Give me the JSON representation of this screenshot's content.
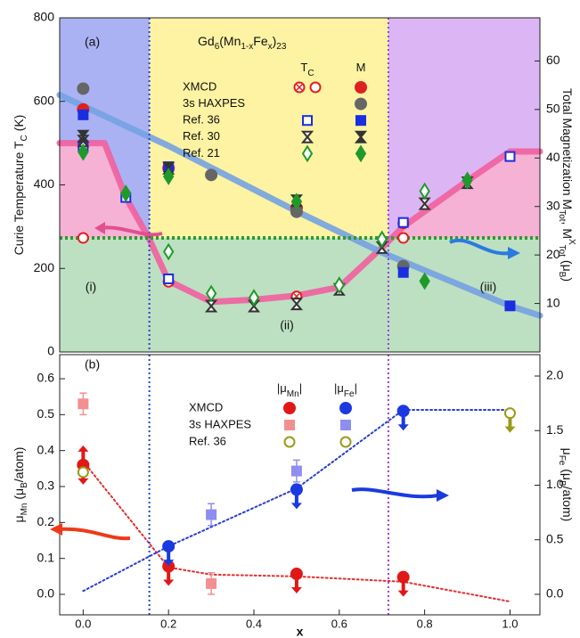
{
  "chart_data": [
    {
      "type": "scatter",
      "panel_label": "(a)",
      "title": [
        {
          "text": "Gd"
        },
        {
          "text": "6",
          "pos": "sub"
        },
        {
          "text": "(Mn"
        },
        {
          "text": "1-x",
          "pos": "sub"
        },
        {
          "text": "Fe"
        },
        {
          "text": "x",
          "pos": "sub"
        },
        {
          "text": ")"
        },
        {
          "text": "23",
          "pos": "sub"
        }
      ],
      "annotations": [
        "(i)",
        "(ii)",
        "(iii)"
      ],
      "y_label": [
        {
          "text": "Curie Temperature T"
        },
        {
          "text": "C",
          "pos": "sub"
        },
        {
          "text": " (K)"
        }
      ],
      "y2_label": [
        {
          "text": "Total Magnetization M"
        },
        {
          "text": "Tot",
          "pos": "sub"
        },
        {
          "text": ", M"
        },
        {
          "text": "X",
          "pos": "super"
        },
        {
          "text": "Tot",
          "pos": "sub"
        },
        {
          "text": " (μ"
        },
        {
          "text": "B",
          "pos": "sub"
        },
        {
          "text": ")"
        }
      ],
      "xlim": [
        -0.055,
        1.07
      ],
      "ylim": [
        0,
        800
      ],
      "yticks": [
        0,
        200,
        400,
        600,
        800
      ],
      "y2lim": [
        0,
        68.9
      ],
      "y2ticks": [
        10,
        20,
        30,
        40,
        50,
        60
      ],
      "vlines": [
        {
          "x": 0.155,
          "color": "#2a3fcc"
        },
        {
          "x": 0.715,
          "color": "#9a3fd6"
        }
      ],
      "hline": {
        "y": 273,
        "color": "#2f9a2f"
      },
      "region_colors": {
        "left": "#aab2f4",
        "middle": "#fdf3a2",
        "right": "#dcb6f4",
        "low": "#bde0c2",
        "pink": "#f6b2d4"
      },
      "legend_columns": [
        [
          {
            "text": "T"
          },
          {
            "text": "C",
            "pos": "sub"
          }
        ],
        [
          {
            "text": "M"
          }
        ]
      ],
      "series": [
        {
          "kind": "line",
          "color": "#f0609f",
          "x": [
            -0.055,
            0.05,
            0.1,
            0.155,
            0.2,
            0.3,
            0.4,
            0.5,
            0.6,
            0.7,
            0.75,
            0.9,
            1.0,
            1.07
          ],
          "values": [
            500,
            500,
            370,
            270,
            170,
            120,
            125,
            135,
            155,
            250,
            300,
            410,
            480,
            480
          ]
        },
        {
          "kind": "line",
          "axis": "y2",
          "color": "#74a2e2",
          "x": [
            -0.055,
            0.2,
            0.5,
            0.7,
            1.0,
            1.07
          ],
          "values": [
            53,
            42.5,
            29,
            20.5,
            9.5,
            7.5
          ]
        },
        {
          "name": "XMCD",
          "column": 0,
          "marker": "circle-x",
          "color": "#e02020",
          "x": [
            0.5,
            0.75
          ],
          "values": [
            133,
            308
          ]
        },
        {
          "name": "XMCD",
          "column": 0,
          "marker": "circle-open",
          "color": "#e02020",
          "x": [
            0,
            0.2,
            0.75
          ],
          "values": [
            273,
            168,
            273
          ]
        },
        {
          "name": "XMCD",
          "column": 1,
          "marker": "circle",
          "axis": "y2",
          "color": "#e02020",
          "x": [
            0,
            0.2,
            0.5
          ],
          "values": [
            50.0,
            37.9,
            29.7
          ]
        },
        {
          "name": "3s HAXPES",
          "column": 1,
          "marker": "circle",
          "axis": "y2",
          "color": "#666666",
          "x": [
            0,
            0.3,
            0.5,
            0.75
          ],
          "values": [
            54.3,
            36.5,
            28.9,
            17.7
          ]
        },
        {
          "name": "Ref. 36",
          "column": 0,
          "marker": "square-open",
          "color": "#1a2ee0",
          "x": [
            0,
            0.1,
            0.2,
            0.75,
            1.0
          ],
          "values": [
            490,
            370,
            175,
            310,
            468
          ]
        },
        {
          "name": "Ref. 36",
          "column": 1,
          "marker": "square",
          "axis": "y2",
          "color": "#1a2ee0",
          "x": [
            0,
            0.2,
            0.75,
            1.0
          ],
          "values": [
            48.9,
            38.2,
            16.4,
            9.5
          ]
        },
        {
          "name": "Ref. 30",
          "column": 0,
          "marker": "hourglass-open",
          "color": "#333333",
          "x": [
            0,
            0.3,
            0.4,
            0.5,
            0.6,
            0.7,
            0.8,
            0.9
          ],
          "values": [
            505,
            110,
            110,
            115,
            150,
            250,
            355,
            405
          ]
        },
        {
          "name": "Ref. 30",
          "column": 1,
          "marker": "hourglass",
          "axis": "y2",
          "color": "#333333",
          "x": [
            0,
            0.2,
            0.5
          ],
          "values": [
            44.5,
            37.9,
            31.2
          ]
        },
        {
          "name": "Ref. 21",
          "column": 0,
          "marker": "diamond-open",
          "color": "#1f9a2a",
          "x": [
            0.2,
            0.3,
            0.4,
            0.6,
            0.7,
            0.8
          ],
          "values": [
            240,
            140,
            130,
            160,
            270,
            385
          ]
        },
        {
          "name": "Ref. 21",
          "column": 1,
          "marker": "diamond",
          "axis": "y2",
          "color": "#1f9a2a",
          "x": [
            0,
            0.1,
            0.2,
            0.5,
            0.8,
            0.9
          ],
          "values": [
            41.2,
            32.7,
            36.2,
            31.0,
            14.6,
            35.4
          ]
        }
      ]
    },
    {
      "type": "scatter",
      "panel_label": "(b)",
      "y_label": [
        {
          "text": "μ"
        },
        {
          "text": "Mn",
          "pos": "sub"
        },
        {
          "text": " (μ"
        },
        {
          "text": "B",
          "pos": "sub"
        },
        {
          "text": "/atom)"
        }
      ],
      "y2_label": [
        {
          "text": "μ"
        },
        {
          "text": "Fe",
          "pos": "sub"
        },
        {
          "text": " (μ"
        },
        {
          "text": "B",
          "pos": "sub"
        },
        {
          "text": "/atom)"
        }
      ],
      "x_label": "x",
      "xlim": [
        -0.055,
        1.07
      ],
      "xticks": [
        {
          "value": 0,
          "label": "0.0"
        },
        0.2,
        0.4,
        0.6,
        0.8,
        {
          "value": 1,
          "label": "1.0"
        }
      ],
      "ylim": [
        -0.057,
        0.667
      ],
      "yticks": [
        {
          "value": 0,
          "label": "0.0"
        },
        0.1,
        0.2,
        0.3,
        0.4,
        0.5,
        0.6
      ],
      "y2lim": [
        -0.188,
        2.196
      ],
      "y2ticks": [
        {
          "value": 0,
          "label": "0.0"
        },
        0.5,
        {
          "value": 1,
          "label": "1.0"
        },
        1.5,
        {
          "value": 2,
          "label": "2.0"
        }
      ],
      "vlines": [
        {
          "x": 0.155,
          "color": "#2a3fcc"
        },
        {
          "x": 0.715,
          "color": "#9a3fd6"
        }
      ],
      "legend_columns": [
        [
          {
            "text": "|μ"
          },
          {
            "text": "Mn",
            "pos": "sub"
          },
          {
            "text": "|"
          }
        ],
        [
          {
            "text": "|μ"
          },
          {
            "text": "Fe",
            "pos": "sub"
          },
          {
            "text": "|"
          }
        ]
      ],
      "series": [
        {
          "kind": "line",
          "dash": true,
          "color": "#e03030",
          "x": [
            0,
            0.2,
            0.3,
            0.5,
            0.75,
            1.0
          ],
          "values": [
            0.37,
            0.075,
            0.055,
            0.05,
            0.035,
            -0.02
          ]
        },
        {
          "kind": "line",
          "dash": true,
          "axis": "y2",
          "color": "#2a3fcc",
          "x": [
            0,
            0.2,
            0.5,
            0.75,
            1.0
          ],
          "values": [
            0.03,
            0.44,
            0.97,
            1.69,
            1.69
          ]
        },
        {
          "name": "XMCD",
          "column": 0,
          "marker": "circle",
          "color": "#e01818",
          "x": [
            0,
            0.2,
            0.5,
            0.75
          ],
          "values": [
            0.36,
            0.078,
            0.057,
            0.048
          ],
          "arrows": [
            "both",
            "down",
            "down",
            "down"
          ]
        },
        {
          "name": "3s HAXPES",
          "column": 0,
          "marker": "square",
          "color": "#f29090",
          "x": [
            0,
            0.3
          ],
          "values": [
            0.53,
            0.03
          ],
          "errors": [
            0.03,
            0.03
          ]
        },
        {
          "name": "Ref. 36",
          "column": 0,
          "marker": "circle-open",
          "color": "#9a9a18",
          "x": [
            0
          ],
          "values": [
            0.34
          ]
        },
        {
          "name": "XMCD",
          "column": 1,
          "marker": "circle",
          "axis": "y2",
          "color": "#1a3ae0",
          "x": [
            0.2,
            0.5,
            0.75
          ],
          "values": [
            0.44,
            0.96,
            1.68
          ],
          "arrows": [
            "down",
            "down",
            "down"
          ]
        },
        {
          "name": "3s HAXPES",
          "column": 1,
          "marker": "square",
          "axis": "y2",
          "color": "#8e8ef0",
          "x": [
            0.3,
            0.5
          ],
          "values": [
            0.73,
            1.13
          ],
          "errors": [
            0.1,
            0.1
          ]
        },
        {
          "name": "Ref. 36",
          "column": 1,
          "marker": "circle-open",
          "axis": "y2",
          "color": "#9a9a18",
          "x": [
            1.0
          ],
          "values": [
            1.66
          ],
          "arrows": [
            "down"
          ]
        }
      ]
    }
  ]
}
